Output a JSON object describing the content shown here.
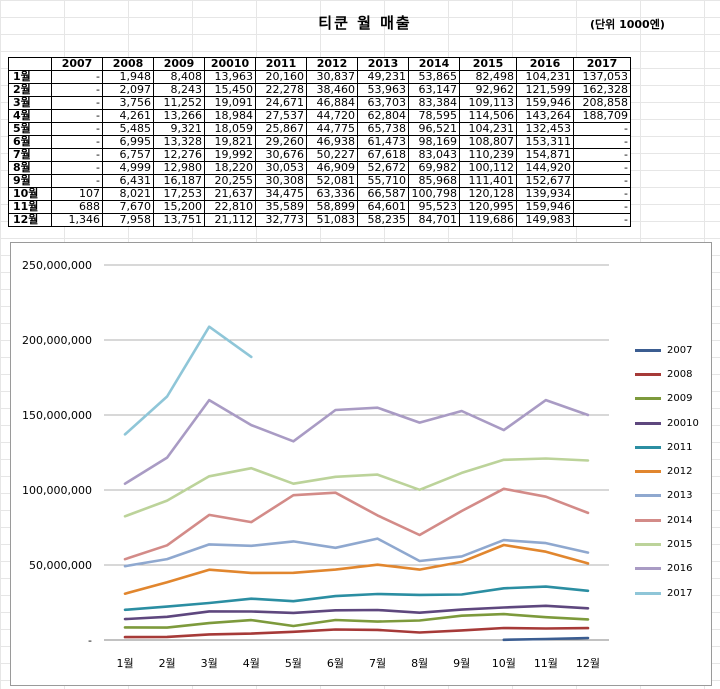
{
  "sheet": {
    "title": "티쿤 월 매출",
    "unit_note": "(단위 1000엔)",
    "columns": [
      "2007",
      "2008",
      "2009",
      "20010",
      "2011",
      "2012",
      "2013",
      "2014",
      "2015",
      "2016",
      "2017"
    ],
    "rows": [
      {
        "label": "1월",
        "cells": [
          "-",
          "1,948",
          "8,408",
          "13,963",
          "20,160",
          "30,837",
          "49,231",
          "53,865",
          "82,498",
          "104,231",
          "137,053"
        ]
      },
      {
        "label": "2월",
        "cells": [
          "-",
          "2,097",
          "8,243",
          "15,450",
          "22,278",
          "38,460",
          "53,963",
          "63,147",
          "92,962",
          "121,599",
          "162,328"
        ]
      },
      {
        "label": "3월",
        "cells": [
          "-",
          "3,756",
          "11,252",
          "19,091",
          "24,671",
          "46,884",
          "63,703",
          "83,384",
          "109,113",
          "159,946",
          "208,858"
        ]
      },
      {
        "label": "4월",
        "cells": [
          "-",
          "4,261",
          "13,266",
          "18,984",
          "27,537",
          "44,720",
          "62,804",
          "78,595",
          "114,506",
          "143,264",
          "188,709"
        ]
      },
      {
        "label": "5월",
        "cells": [
          "-",
          "5,485",
          "9,321",
          "18,059",
          "25,867",
          "44,775",
          "65,738",
          "96,521",
          "104,231",
          "132,453",
          "-"
        ]
      },
      {
        "label": "6월",
        "cells": [
          "-",
          "6,995",
          "13,328",
          "19,821",
          "29,260",
          "46,938",
          "61,473",
          "98,169",
          "108,807",
          "153,311",
          "-"
        ]
      },
      {
        "label": "7월",
        "cells": [
          "-",
          "6,757",
          "12,276",
          "19,992",
          "30,676",
          "50,227",
          "67,618",
          "83,043",
          "110,239",
          "154,871",
          "-"
        ]
      },
      {
        "label": "8월",
        "cells": [
          "-",
          "4,999",
          "12,980",
          "18,220",
          "30,053",
          "46,909",
          "52,672",
          "69,982",
          "100,112",
          "144,920",
          "-"
        ]
      },
      {
        "label": "9월",
        "cells": [
          "-",
          "6,431",
          "16,187",
          "20,255",
          "30,308",
          "52,081",
          "55,710",
          "85,968",
          "111,401",
          "152,677",
          "-"
        ]
      },
      {
        "label": "10월",
        "cells": [
          "107",
          "8,021",
          "17,253",
          "21,637",
          "34,475",
          "63,336",
          "66,587",
          "100,798",
          "120,128",
          "139,934",
          "-"
        ]
      },
      {
        "label": "11월",
        "cells": [
          "688",
          "7,670",
          "15,200",
          "22,810",
          "35,589",
          "58,899",
          "64,601",
          "95,523",
          "120,995",
          "159,946",
          "-"
        ]
      },
      {
        "label": "12월",
        "cells": [
          "1,346",
          "7,958",
          "13,751",
          "21,112",
          "32,773",
          "51,083",
          "58,235",
          "84,701",
          "119,686",
          "149,983",
          "-"
        ]
      }
    ]
  },
  "chart_data": {
    "type": "line",
    "title": "",
    "xlabel": "",
    "ylabel": "",
    "categories": [
      "1월",
      "2월",
      "3월",
      "4월",
      "5월",
      "6월",
      "7월",
      "8월",
      "9월",
      "10월",
      "11월",
      "12월"
    ],
    "ylim": [
      0,
      250000000
    ],
    "yticks": [
      0,
      50000000,
      100000000,
      150000000,
      200000000,
      250000000
    ],
    "ytick_labels": [
      "-",
      "50,000,000",
      "100,000,000",
      "150,000,000",
      "200,000,000",
      "250,000,000"
    ],
    "grid": true,
    "legend_position": "right",
    "series": [
      {
        "name": "2007",
        "color": "#3b5d91",
        "values": [
          null,
          null,
          null,
          null,
          null,
          null,
          null,
          null,
          null,
          107000,
          688000,
          1346000
        ]
      },
      {
        "name": "2008",
        "color": "#a63a38",
        "values": [
          1948000,
          2097000,
          3756000,
          4261000,
          5485000,
          6995000,
          6757000,
          4999000,
          6431000,
          8021000,
          7670000,
          7958000
        ]
      },
      {
        "name": "2009",
        "color": "#7d9a3c",
        "values": [
          8408000,
          8243000,
          11252000,
          13266000,
          9321000,
          13328000,
          12276000,
          12980000,
          16187000,
          17253000,
          15200000,
          13751000
        ]
      },
      {
        "name": "20010",
        "color": "#5e477e",
        "values": [
          13963000,
          15450000,
          19091000,
          18984000,
          18059000,
          19821000,
          19992000,
          18220000,
          20255000,
          21637000,
          22810000,
          21112000
        ]
      },
      {
        "name": "2011",
        "color": "#2b8ea2",
        "values": [
          20160000,
          22278000,
          24671000,
          27537000,
          25867000,
          29260000,
          30676000,
          30053000,
          30308000,
          34475000,
          35589000,
          32773000
        ]
      },
      {
        "name": "2012",
        "color": "#e1862e",
        "values": [
          30837000,
          38460000,
          46884000,
          44720000,
          44775000,
          46938000,
          50227000,
          46909000,
          52081000,
          63336000,
          58899000,
          51083000
        ]
      },
      {
        "name": "2013",
        "color": "#8fa8cf",
        "values": [
          49231000,
          53963000,
          63703000,
          62804000,
          65738000,
          61473000,
          67618000,
          52672000,
          55710000,
          66587000,
          64601000,
          58235000
        ]
      },
      {
        "name": "2014",
        "color": "#d38b88",
        "values": [
          53865000,
          63147000,
          83384000,
          78595000,
          96521000,
          98169000,
          83043000,
          69982000,
          85968000,
          100798000,
          95523000,
          84701000
        ]
      },
      {
        "name": "2015",
        "color": "#bcd39a",
        "values": [
          82498000,
          92962000,
          109113000,
          114506000,
          104231000,
          108807000,
          110239000,
          100112000,
          111401000,
          120128000,
          120995000,
          119686000
        ]
      },
      {
        "name": "2016",
        "color": "#a99bc4",
        "values": [
          104231000,
          121599000,
          159946000,
          143264000,
          132453000,
          153311000,
          154871000,
          144920000,
          152677000,
          139934000,
          159946000,
          149983000
        ]
      },
      {
        "name": "2017",
        "color": "#8fc6d8",
        "values": [
          137053000,
          162328000,
          208858000,
          188709000,
          null,
          null,
          null,
          null,
          null,
          null,
          null,
          null
        ]
      }
    ]
  }
}
